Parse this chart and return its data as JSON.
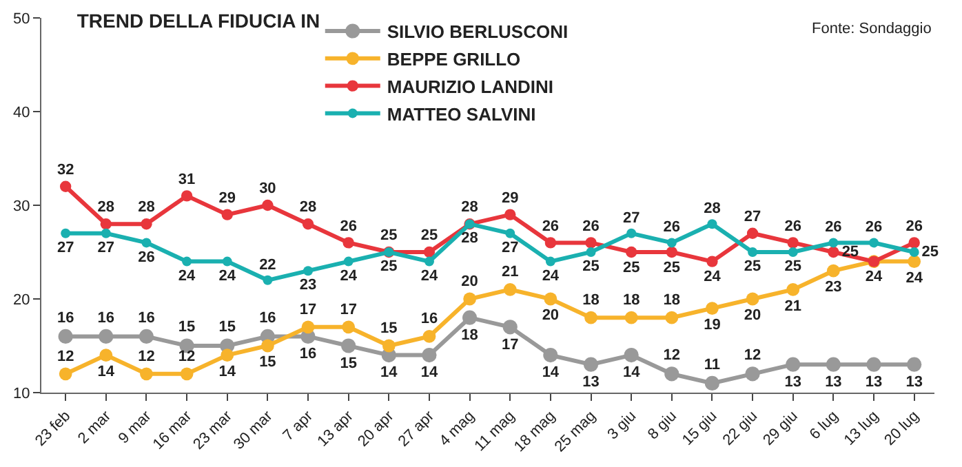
{
  "chart_data": {
    "type": "line",
    "title": "TREND DELLA FIDUCIA IN",
    "categories": [
      "23 feb",
      "2 mar",
      "9 mar",
      "16 mar",
      "23 mar",
      "30 mar",
      "7 apr",
      "13 apr",
      "20 apr",
      "27 apr",
      "4 mag",
      "11 mag",
      "18 mag",
      "25 mag",
      "3 giu",
      "8 giu",
      "15 giu",
      "22 giu",
      "29 giu",
      "6 lug",
      "13 lug",
      "20 lug"
    ],
    "series": [
      {
        "name": "SILVIO BERLUSCONI",
        "color": "#999999",
        "values": [
          16,
          16,
          16,
          15,
          15,
          16,
          16,
          15,
          14,
          14,
          18,
          17,
          14,
          13,
          14,
          12,
          11,
          12,
          13,
          13,
          13,
          13
        ],
        "value_labels": [
          "16",
          "16",
          "16",
          "15",
          "15",
          "16",
          "16",
          "15",
          "14",
          "14",
          "18",
          "17",
          "14",
          "13",
          "14",
          "12",
          "11",
          "12",
          "13",
          "13",
          "13",
          "13"
        ]
      },
      {
        "name": "BEPPE GRILLO",
        "color": "#f7b32b",
        "values": [
          12,
          14,
          12,
          12,
          14,
          15,
          17,
          17,
          15,
          16,
          20,
          21,
          20,
          18,
          18,
          18,
          19,
          20,
          21,
          23,
          24,
          24
        ],
        "value_labels": [
          "12",
          "14",
          "12",
          "12",
          "14",
          "15",
          "17",
          "17",
          "15",
          "16",
          "20",
          "21",
          "20",
          "18",
          "18",
          "18",
          "19",
          "20",
          "21",
          "23",
          null,
          "24"
        ]
      },
      {
        "name": "MAURIZIO LANDINI",
        "color": "#e8363c",
        "values": [
          32,
          28,
          28,
          31,
          29,
          30,
          28,
          26,
          25,
          25,
          28,
          29,
          26,
          26,
          25,
          25,
          24,
          27,
          26,
          25,
          24,
          26
        ],
        "value_labels": [
          "32",
          "28",
          "28",
          "31",
          "29",
          "30",
          "28",
          "26",
          "25",
          "25",
          "28",
          "29",
          "26",
          "26",
          "25",
          "25",
          "24",
          "27",
          "26",
          "25",
          "24",
          "26"
        ]
      },
      {
        "name": "MATTEO SALVINI",
        "color": "#1ab0b0",
        "values": [
          27,
          27,
          26,
          24,
          24,
          22,
          23,
          24,
          25,
          24,
          28,
          27,
          24,
          25,
          27,
          26,
          28,
          25,
          25,
          26,
          26,
          25
        ],
        "value_labels": [
          "27",
          "27",
          "26",
          "24",
          "24",
          "22",
          "23",
          "24",
          "25",
          "24",
          "28",
          "27",
          "24",
          "25",
          "27",
          "26",
          "28",
          "25",
          "25",
          "26",
          "26",
          "25"
        ]
      }
    ],
    "ylim": [
      10,
      50
    ],
    "yticks": [
      10,
      20,
      30,
      40,
      50
    ],
    "legend": "top left",
    "marker": "circle",
    "line_style": "solid",
    "annotations": [
      "Fonte: Sondaggio"
    ]
  }
}
